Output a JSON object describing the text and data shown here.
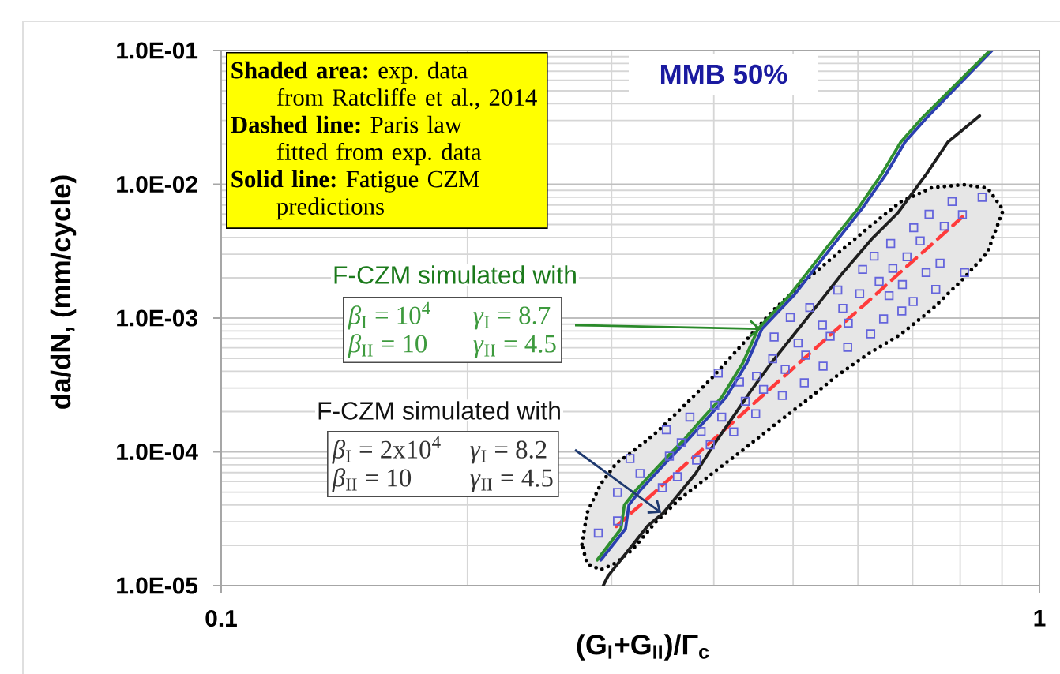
{
  "chart_data": {
    "type": "line",
    "title": "MMB 50%",
    "xlabel": "(G$_{I}$+G$_{II}$)/Γ$_{c}$",
    "ylabel": "da/dN, (mm/cycle)",
    "log": "xy",
    "grid": true,
    "xlim": [
      0.1,
      1
    ],
    "ylim": [
      1e-05,
      0.1
    ],
    "xticks": [
      0.1,
      1
    ],
    "yticks": [
      {
        "value": 1e-05,
        "label": "1.0E-05"
      },
      {
        "value": 0.0001,
        "label": "1.0E-04"
      },
      {
        "value": 0.001,
        "label": "1.0E-03"
      },
      {
        "value": 0.01,
        "label": "1.0E-02"
      },
      {
        "value": 0.1,
        "label": "1.0E-01"
      }
    ],
    "annotations": [
      "**Shaded area:** exp. data",
      "from Ratcliffe et al., 2014",
      "**Dashed line:** Paris law",
      "fitted from exp. data",
      "**Solid line:** Fatigue CZM",
      "predictions",
      "F-CZM simulated with",
      "*β*$_{I}$ = 10$^{4}$",
      "*γ*$_{I}$ = 8.7",
      "*β*$_{II}$ = 10",
      {
        "text": "*γ*$_{II}$ = 4.5",
        "x": 0.457,
        "y": 0.00083
      },
      "F-CZM simulated with",
      "*β*$_{I}$ = 2x10$^{4}$",
      {
        "text": "*γ*$_{I}$ = 8.2",
        "x": 0.345,
        "y": 3.5e-05
      },
      "*β*$_{II}$ = 10",
      "*γ*$_{II}$ = 4.5"
    ],
    "series": [
      {
        "color": "#ff3b3b",
        "line_style": "dashed",
        "x": [
          0.276,
          0.28,
          0.291,
          0.304,
          0.318,
          0.34,
          0.363,
          0.397,
          0.434,
          0.474,
          0.518,
          0.566,
          0.619,
          0.676,
          0.739,
          0.808,
          0.864,
          0.903
        ],
        "values": [
          null,
          null,
          null,
          2.77e-05,
          3.54e-05,
          5.09e-05,
          7.33e-05,
          0.000119,
          0.000194,
          0.000315,
          0.000511,
          0.000831,
          0.00135,
          0.0022,
          0.00357,
          0.00582,
          null,
          null
        ],
        "upper": [
          2.03e-05,
          3.49e-05,
          5.75e-05,
          8.21e-05,
          9.96e-05,
          0.000139,
          0.000204,
          0.000351,
          0.000642,
          0.00116,
          0.00192,
          0.00302,
          0.00477,
          0.00737,
          0.00944,
          0.00993,
          0.00938,
          0.00643
        ],
        "lower": [
          2.03e-05,
          1.46e-05,
          1.31e-05,
          1.48e-05,
          1.85e-05,
          3e-05,
          4.4e-05,
          6.79e-05,
          0.000103,
          0.000158,
          0.00024,
          0.000371,
          0.000544,
          0.000752,
          0.00116,
          0.00198,
          0.0031,
          0.00643
        ]
      },
      {
        "type": "scatter",
        "color": "#6464dc",
        "marker": "square",
        "x": [
          0.289,
          0.305,
          0.305,
          0.325,
          0.316,
          0.346,
          0.361,
          0.353,
          0.381,
          0.365,
          0.374,
          0.386,
          0.35,
          0.396,
          0.401,
          0.409,
          0.423,
          0.405,
          0.43,
          0.437,
          0.45,
          0.451,
          0.46,
          0.485,
          0.489,
          0.516,
          0.544,
          0.474,
          0.555,
          0.583,
          0.622,
          0.507,
          0.543,
          0.584,
          0.496,
          0.524,
          0.575,
          0.567,
          0.603,
          0.645,
          0.679,
          0.701,
          0.637,
          0.68,
          0.747,
          0.608,
          0.662,
          0.727,
          0.81,
          0.756,
          0.628,
          0.689,
          0.658,
          0.715,
          0.702,
          0.733,
          0.782,
          0.851,
          0.518,
          0.805,
          0.765,
          0.472,
          0.655
        ],
        "values": [
          2.47e-05,
          3.05e-05,
          4.97e-05,
          6.89e-05,
          8.91e-05,
          5.39e-05,
          6.52e-05,
          9.28e-05,
          8.67e-05,
          0.000117,
          0.000182,
          0.000142,
          0.000146,
          0.000113,
          0.000223,
          0.000182,
          0.000141,
          0.000388,
          0.000333,
          0.000239,
          0.000193,
          0.000368,
          0.000293,
          0.000264,
          0.000414,
          0.000328,
          0.000437,
          0.000722,
          0.000731,
          0.000605,
          0.000762,
          0.000651,
          0.000885,
          0.000917,
          0.00101,
          0.0012,
          0.00118,
          0.00162,
          0.00152,
          0.000986,
          0.00113,
          0.00133,
          0.00188,
          0.00178,
          0.00164,
          0.00231,
          0.00235,
          0.00219,
          0.00219,
          0.00257,
          0.0029,
          0.00287,
          0.00361,
          0.00377,
          0.00473,
          0.00597,
          0.00743,
          0.008,
          0.000528,
          0.00593,
          0.00486,
          0.000496,
          0.00147
        ]
      },
      {
        "color": "#1e1e1e",
        "x": [
          0.293,
          0.297,
          0.332,
          0.347,
          0.38,
          0.4,
          0.421,
          0.443,
          0.47,
          0.526,
          0.574,
          0.623,
          0.671,
          0.728,
          0.773,
          0.845
        ],
        "values": [
          1e-05,
          1.18e-05,
          2.79e-05,
          3.49e-05,
          6.89e-05,
          0.000113,
          0.000178,
          0.00028,
          0.000461,
          0.00109,
          0.00215,
          0.00387,
          0.00609,
          0.012,
          0.0207,
          0.0325
        ]
      },
      {
        "color": "#2b3fb0",
        "x": [
          0.291,
          0.312,
          0.315,
          0.326,
          0.354,
          0.37,
          0.39,
          0.414,
          0.439,
          0.458,
          0.502,
          0.557,
          0.608,
          0.65,
          0.685,
          0.727,
          0.875
        ],
        "values": [
          1.55e-05,
          2.66e-05,
          4e-05,
          5.25e-05,
          9.04e-05,
          0.000119,
          0.00017,
          0.000256,
          0.000461,
          0.00083,
          0.0015,
          0.00338,
          0.00667,
          0.012,
          0.0207,
          0.0311,
          0.1
        ]
      },
      {
        "color": "#2f8f2f",
        "x": [
          0.288,
          0.308,
          0.311,
          0.322,
          0.35,
          0.366,
          0.385,
          0.409,
          0.434,
          0.453,
          0.496,
          0.55,
          0.601,
          0.642,
          0.677,
          0.718,
          0.87
        ],
        "values": [
          1.55e-05,
          2.66e-05,
          4e-05,
          5.25e-05,
          9.04e-05,
          0.000119,
          0.00017,
          0.000256,
          0.000461,
          0.00083,
          0.0015,
          0.00338,
          0.00667,
          0.012,
          0.0207,
          0.0311,
          0.1
        ]
      }
    ]
  }
}
